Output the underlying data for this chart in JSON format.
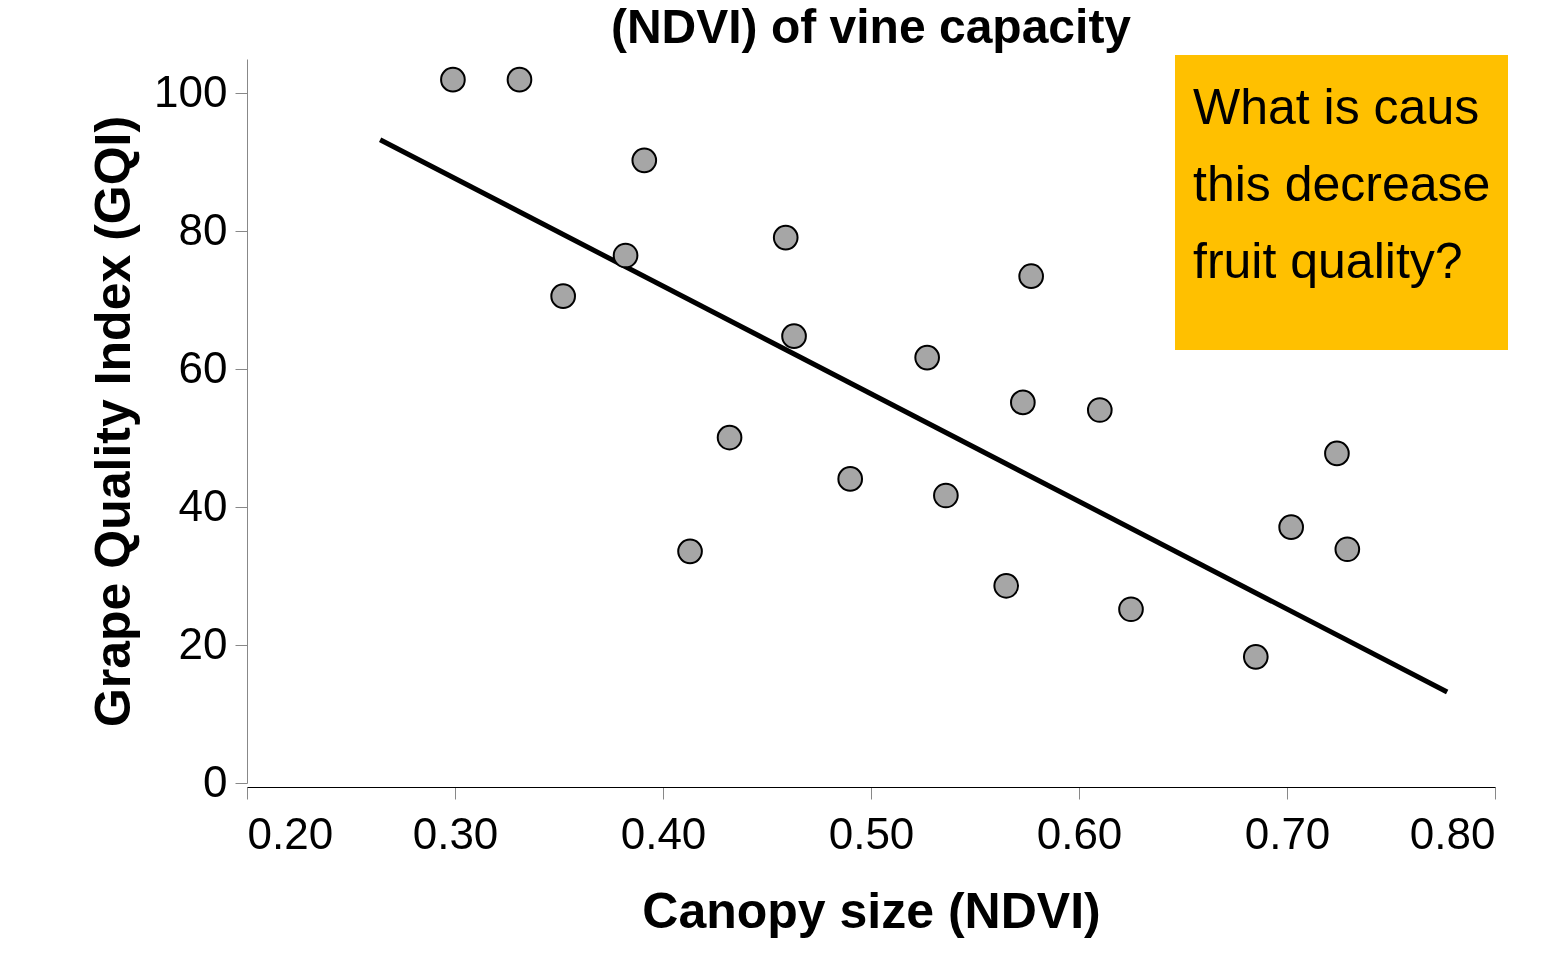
{
  "chart_data": {
    "type": "scatter",
    "title": "(NDVI) of vine capacity",
    "xlabel": "Canopy size (NDVI)",
    "ylabel": "Grape Quality Index (GQI)",
    "annotations": [
      "What is caus\nthis decrease\nfruit quality?"
    ],
    "xlim": [
      0.2,
      0.8
    ],
    "xticks": [
      {
        "value": 0.2,
        "label": "0.20"
      },
      {
        "value": 0.3,
        "label": "0.30"
      },
      {
        "value": 0.4,
        "label": "0.40"
      },
      {
        "value": 0.5,
        "label": "0.50"
      },
      {
        "value": 0.6,
        "label": "0.60"
      },
      {
        "value": 0.7,
        "label": "0.70"
      },
      {
        "value": 0.8,
        "label": "0.80"
      }
    ],
    "ylim": [
      0,
      105
    ],
    "yticks": [
      0,
      20,
      40,
      60,
      80,
      100
    ],
    "grid": false,
    "series": [
      {
        "marker": "circle",
        "color": "#a6a6a6",
        "x": [
          0.299,
          0.331,
          0.391,
          0.382,
          0.352,
          0.459,
          0.463,
          0.432,
          0.413,
          0.49,
          0.527,
          0.536,
          0.577,
          0.573,
          0.61,
          0.565,
          0.625,
          0.685,
          0.702,
          0.724,
          0.729
        ],
        "values": [
          102,
          102,
          90.3,
          76.5,
          70.6,
          79.1,
          64.8,
          50.1,
          33.6,
          44.1,
          61.7,
          41.7,
          73.5,
          55.2,
          54.1,
          28.6,
          25.2,
          18.3,
          37.1,
          47.8,
          33.9
        ]
      },
      {
        "type": "line",
        "color": "#000000",
        "x": [
          0.264,
          0.777
        ],
        "values": [
          93.3,
          13.2
        ]
      }
    ]
  }
}
